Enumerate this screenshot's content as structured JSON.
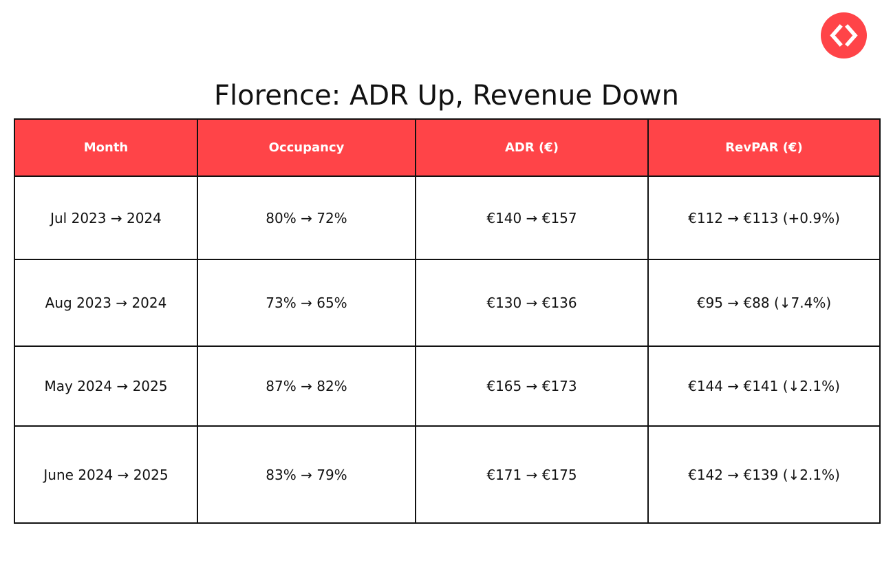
{
  "title": "Florence: ADR Up, Revenue Down",
  "logo": {
    "icon": "diamond-chevrons-icon",
    "color": "#ff4448"
  },
  "colors": {
    "accent": "#ff4448",
    "header_text": "#ffffff",
    "border": "#111111"
  },
  "table": {
    "headers": [
      "Month",
      "Occupancy",
      "ADR (€)",
      "RevPAR (€)"
    ],
    "rows": [
      [
        "Jul 2023 → 2024",
        "80% → 72%",
        "€140 → €157",
        "€112 → €113 (+0.9%)"
      ],
      [
        "Aug 2023 → 2024",
        "73% → 65%",
        "€130 → €136",
        "€95 → €88 (↓7.4%)"
      ],
      [
        "May 2024 → 2025",
        "87% → 82%",
        "€165 → €173",
        "€144 → €141 (↓2.1%)"
      ],
      [
        "June 2024 → 2025",
        "83% → 79%",
        "€171 → €175",
        "€142 → €139 (↓2.1%)"
      ]
    ]
  }
}
